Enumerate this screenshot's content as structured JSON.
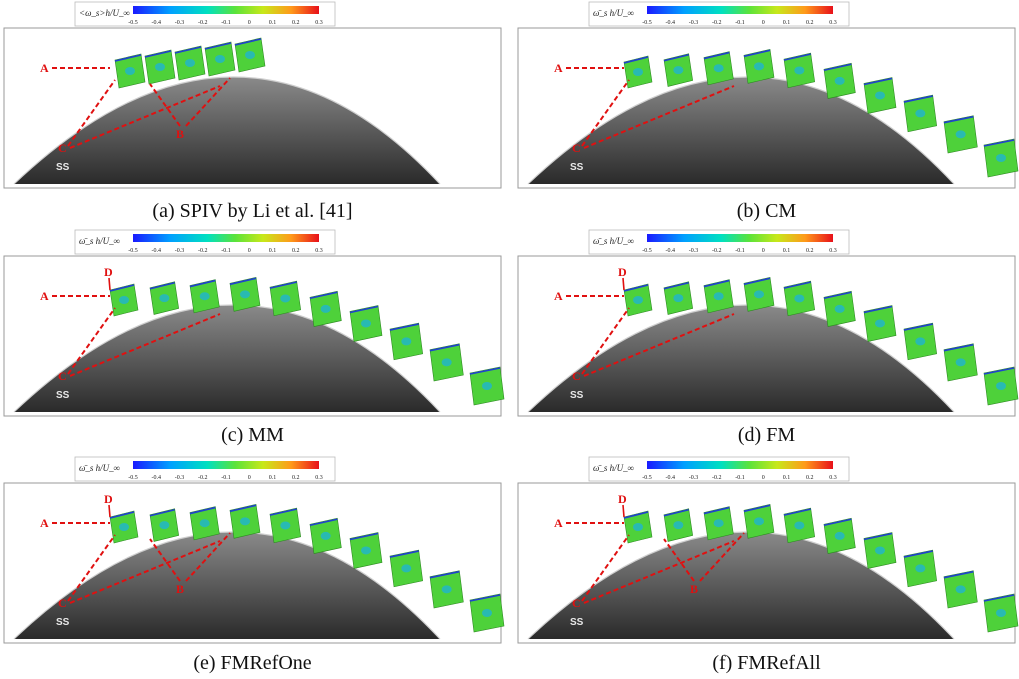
{
  "figure": {
    "panels": [
      {
        "id": "a",
        "caption": "(a) SPIV by Li et al. [41]",
        "colorbar_label": "<ω_s>h/U_∞",
        "colorbar_ticks": [
          "-0.5",
          "-0.4",
          "-0.3",
          "-0.2",
          "-0.1",
          "0",
          "0.1",
          "0.2",
          "0.3"
        ],
        "marker_labels": [
          "A",
          "B",
          "C"
        ],
        "surface_label": "SS",
        "slice_count": 5
      },
      {
        "id": "b",
        "caption": "(b) CM",
        "colorbar_label": "ω̄_s h/U_∞",
        "colorbar_ticks": [
          "-0.5",
          "-0.4",
          "-0.3",
          "-0.2",
          "-0.1",
          "0",
          "0.1",
          "0.2",
          "0.3"
        ],
        "marker_labels": [
          "A",
          "C"
        ],
        "surface_label": "SS",
        "slice_count": 10
      },
      {
        "id": "c",
        "caption": "(c) MM",
        "colorbar_label": "ω̄_s h/U_∞",
        "colorbar_ticks": [
          "-0.5",
          "-0.4",
          "-0.3",
          "-0.2",
          "-0.1",
          "0",
          "0.1",
          "0.2",
          "0.3"
        ],
        "marker_labels": [
          "A",
          "C",
          "D"
        ],
        "surface_label": "SS",
        "slice_count": 10
      },
      {
        "id": "d",
        "caption": "(d) FM",
        "colorbar_label": "ω̄_s h/U_∞",
        "colorbar_ticks": [
          "-0.5",
          "-0.4",
          "-0.3",
          "-0.2",
          "-0.1",
          "0",
          "0.1",
          "0.2",
          "0.3"
        ],
        "marker_labels": [
          "A",
          "C",
          "D"
        ],
        "surface_label": "SS",
        "slice_count": 10
      },
      {
        "id": "e",
        "caption": "(e) FMRefOne",
        "colorbar_label": "ω̄_s h/U_∞",
        "colorbar_ticks": [
          "-0.5",
          "-0.4",
          "-0.3",
          "-0.2",
          "-0.1",
          "0",
          "0.1",
          "0.2",
          "0.3"
        ],
        "marker_labels": [
          "A",
          "B",
          "C",
          "D"
        ],
        "surface_label": "SS",
        "slice_count": 10
      },
      {
        "id": "f",
        "caption": "(f) FMRefAll",
        "colorbar_label": "ω̄_s h/U_∞",
        "colorbar_ticks": [
          "-0.5",
          "-0.4",
          "-0.3",
          "-0.2",
          "-0.1",
          "0",
          "0.1",
          "0.2",
          "0.3"
        ],
        "marker_labels": [
          "A",
          "B",
          "C",
          "D"
        ],
        "surface_label": "SS",
        "slice_count": 10
      }
    ],
    "colors": {
      "marker": "#e01010",
      "blade_light": "#8a8a8a",
      "blade_dark": "#2a2a2a",
      "slice_green": "#4ed13a"
    }
  }
}
